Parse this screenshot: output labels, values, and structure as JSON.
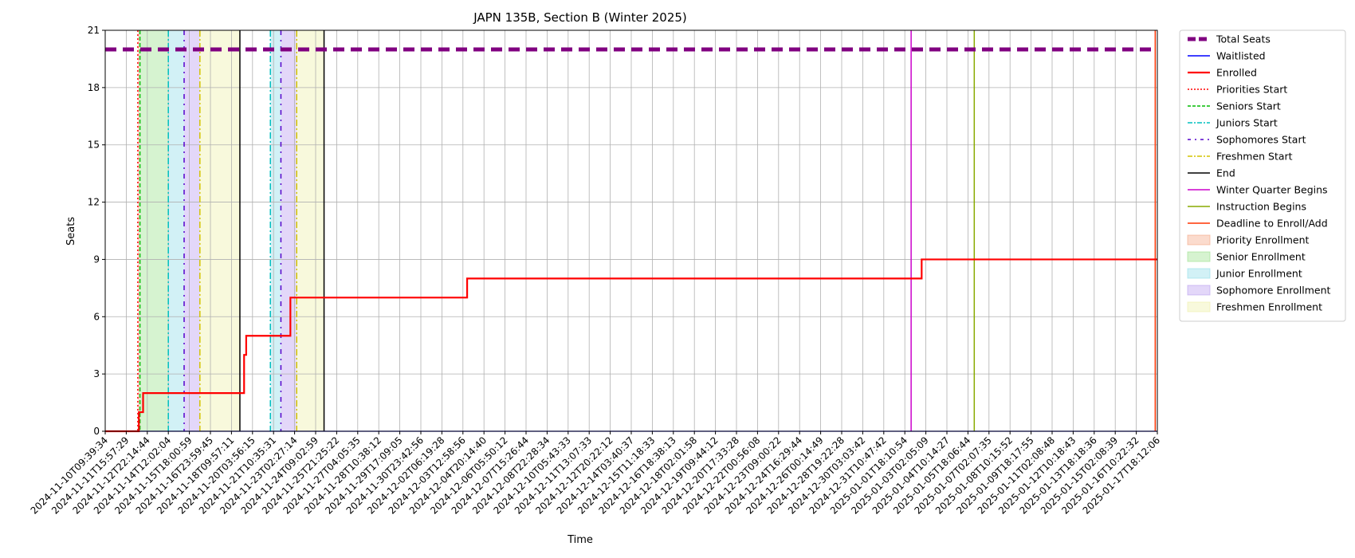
{
  "chart_data": {
    "type": "line",
    "title": "JAPN 135B, Section B (Winter 2025)",
    "xlabel": "Time",
    "ylabel": "Seats",
    "ylim": [
      0,
      21
    ],
    "yticks": [
      0,
      3,
      6,
      9,
      12,
      15,
      18,
      21
    ],
    "xlim": [
      "2024-11-10T09:39:34",
      "2025-01-17T18:12:06"
    ],
    "x_tick_labels": [
      "2024-11-10T09:39:34",
      "2024-11-11T15:57:29",
      "2024-11-12T22:14:44",
      "2024-11-14T12:02:04",
      "2024-11-15T18:00:59",
      "2024-11-16T23:59:45",
      "2024-11-18T09:57:11",
      "2024-11-20T03:56:15",
      "2024-11-21T10:35:31",
      "2024-11-23T02:27:14",
      "2024-11-24T09:02:59",
      "2024-11-25T21:25:22",
      "2024-11-27T04:05:35",
      "2024-11-28T10:38:12",
      "2024-11-29T17:09:05",
      "2024-11-30T23:42:56",
      "2024-12-02T06:19:28",
      "2024-12-03T12:58:56",
      "2024-12-04T20:14:40",
      "2024-12-06T05:50:12",
      "2024-12-07T15:26:44",
      "2024-12-08T22:28:34",
      "2024-12-10T05:43:33",
      "2024-12-11T13:07:33",
      "2024-12-12T20:22:12",
      "2024-12-14T03:40:37",
      "2024-12-15T11:18:33",
      "2024-12-16T18:38:13",
      "2024-12-18T02:01:58",
      "2024-12-19T09:44:12",
      "2024-12-20T17:33:28",
      "2024-12-22T00:56:08",
      "2024-12-23T09:00:22",
      "2024-12-24T16:29:44",
      "2024-12-26T00:14:49",
      "2024-12-28T19:22:28",
      "2024-12-30T03:03:42",
      "2024-12-31T10:47:42",
      "2025-01-01T18:10:54",
      "2025-01-03T02:05:09",
      "2025-01-04T10:14:27",
      "2025-01-05T18:06:44",
      "2025-01-07T02:07:35",
      "2025-01-08T10:15:52",
      "2025-01-09T18:17:55",
      "2025-01-11T02:08:48",
      "2025-01-12T10:18:43",
      "2025-01-13T18:18:36",
      "2025-01-15T02:08:39",
      "2025-01-16T10:22:32",
      "2025-01-17T18:12:06"
    ],
    "grid": true,
    "legend_placement": "outside-right",
    "series": [
      {
        "name": "Total Seats",
        "color": "#800080",
        "style": "dashed-thick",
        "points": [
          {
            "x": 0,
            "y": 20
          },
          {
            "x": 50,
            "y": 20
          }
        ]
      },
      {
        "name": "Waitlisted",
        "color": "#0000ff",
        "style": "solid",
        "points": [
          {
            "x": 0,
            "y": 0
          },
          {
            "x": 50,
            "y": 0
          }
        ]
      },
      {
        "name": "Enrolled",
        "color": "#ff0000",
        "style": "solid-thick",
        "steps": [
          {
            "x": 0,
            "y": 0
          },
          {
            "x": 1.6,
            "y": 1
          },
          {
            "x": 1.8,
            "y": 2
          },
          {
            "x": 6.6,
            "y": 4
          },
          {
            "x": 6.7,
            "y": 5
          },
          {
            "x": 8.8,
            "y": 7
          },
          {
            "x": 17.2,
            "y": 8
          },
          {
            "x": 38.8,
            "y": 9
          },
          {
            "x": 50,
            "y": 9
          }
        ]
      }
    ],
    "vertical_lines": [
      {
        "name": "Priorities Start",
        "color": "#ff0000",
        "style": "dotted",
        "x": [
          1.55
        ]
      },
      {
        "name": "Seniors Start",
        "color": "#00bb00",
        "style": "dashed",
        "x": [
          1.65
        ]
      },
      {
        "name": "Juniors Start",
        "color": "#00bfbf",
        "style": "dashdot",
        "x": [
          3.0,
          7.85
        ]
      },
      {
        "name": "Sophomores Start",
        "color": "#5500cc",
        "style": "dashdot-loose",
        "x": [
          3.75,
          8.35
        ]
      },
      {
        "name": "Freshmen Start",
        "color": "#d4c400",
        "style": "dashdot",
        "x": [
          4.5,
          9.1
        ]
      },
      {
        "name": "End",
        "color": "#000000",
        "style": "solid",
        "x": [
          6.4,
          10.4
        ]
      },
      {
        "name": "Winter Quarter Begins",
        "color": "#cc00cc",
        "style": "solid",
        "x": [
          38.3
        ]
      },
      {
        "name": "Instruction Begins",
        "color": "#88aa00",
        "style": "solid",
        "x": [
          41.3
        ]
      },
      {
        "name": "Deadline to Enroll/Add",
        "color": "#ff3300",
        "style": "solid",
        "x": [
          49.9
        ]
      }
    ],
    "shaded_regions": [
      {
        "name": "Priority Enrollment",
        "color": "#f4a582",
        "ranges": [
          [
            1.55,
            1.65
          ]
        ]
      },
      {
        "name": "Senior Enrollment",
        "color": "#98e08a",
        "ranges": [
          [
            1.65,
            3.0
          ]
        ]
      },
      {
        "name": "Junior Enrollment",
        "color": "#8fdde8",
        "ranges": [
          [
            3.0,
            3.75
          ],
          [
            7.85,
            8.35
          ]
        ]
      },
      {
        "name": "Sophomore Enrollment",
        "color": "#b89cf0",
        "ranges": [
          [
            3.75,
            4.5
          ],
          [
            8.35,
            9.1
          ]
        ]
      },
      {
        "name": "Freshmen Enrollment",
        "color": "#eef0a8",
        "ranges": [
          [
            4.5,
            6.4
          ],
          [
            9.1,
            10.4
          ]
        ]
      }
    ]
  }
}
